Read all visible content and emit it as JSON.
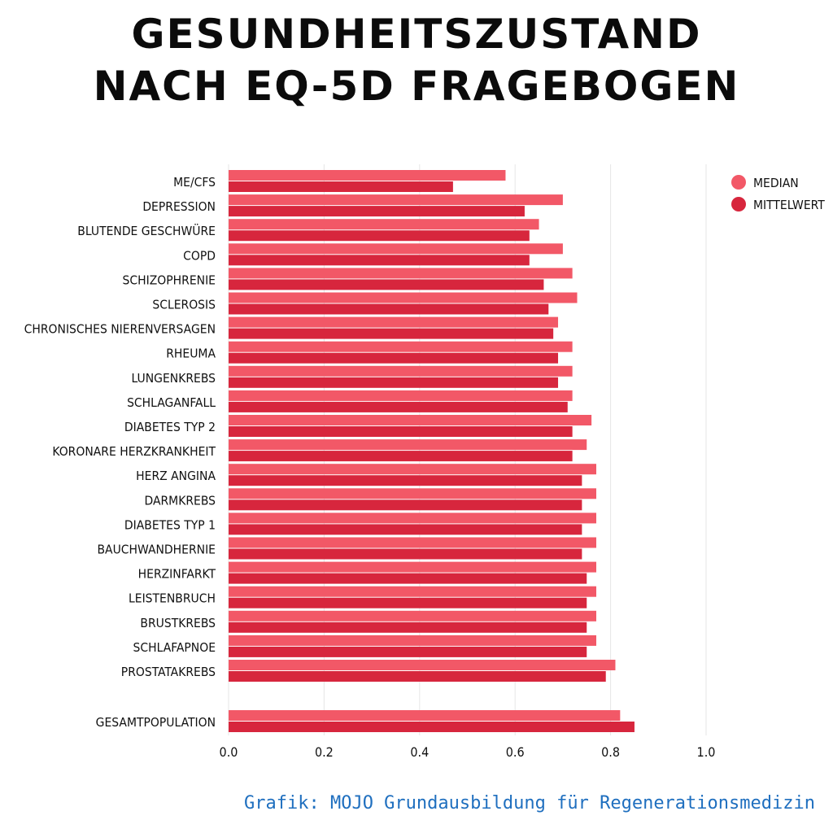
{
  "title_line1": "GESUNDHEITSZUSTAND",
  "title_line2": "NACH EQ-5D FRAGEBOGEN",
  "footer": "Grafik: MOJO Grundausbildung für Regenerationsmedizin",
  "colors": {
    "median": "#f25867",
    "mittelwert": "#d7263d",
    "grid": "#e6e6e6",
    "text": "#111111"
  },
  "chart_data": {
    "type": "bar",
    "orientation": "horizontal",
    "title": "GESUNDHEITSZUSTAND NACH EQ-5D FRAGEBOGEN",
    "categories": [
      "ME/CFS",
      "DEPRESSION",
      "BLUTENDE GESCHWÜRE",
      "COPD",
      "SCHIZOPHRENIE",
      "SCLEROSIS",
      "CHRONISCHES NIERENVERSAGEN",
      "RHEUMA",
      "LUNGENKREBS",
      "SCHLAGANFALL",
      "DIABETES TYP 2",
      "KORONARE HERZKRANKHEIT",
      "HERZ ANGINA",
      "DARMKREBS",
      "DIABETES TYP 1",
      "BAUCHWANDHERNIE",
      "HERZINFARKT",
      "LEISTENBRUCH",
      "BRUSTKREBS",
      "SCHLAFAPNOE",
      "PROSTATAKREBS",
      "GESAMTPOPULATION"
    ],
    "series": [
      {
        "name": "MEDIAN",
        "values": [
          0.58,
          0.7,
          0.65,
          0.7,
          0.72,
          0.73,
          0.69,
          0.72,
          0.72,
          0.72,
          0.76,
          0.75,
          0.77,
          0.77,
          0.77,
          0.77,
          0.77,
          0.77,
          0.77,
          0.77,
          0.81,
          0.82
        ]
      },
      {
        "name": "MITTELWERT",
        "values": [
          0.47,
          0.62,
          0.63,
          0.63,
          0.66,
          0.67,
          0.68,
          0.69,
          0.69,
          0.71,
          0.72,
          0.72,
          0.74,
          0.74,
          0.74,
          0.74,
          0.75,
          0.75,
          0.75,
          0.75,
          0.79,
          0.85
        ]
      }
    ],
    "xlim": [
      0,
      1.0
    ],
    "xticks": [
      "0.0",
      "0.2",
      "0.4",
      "0.6",
      "0.8",
      "1.0"
    ],
    "grid": true,
    "legend_position": "top-right"
  }
}
